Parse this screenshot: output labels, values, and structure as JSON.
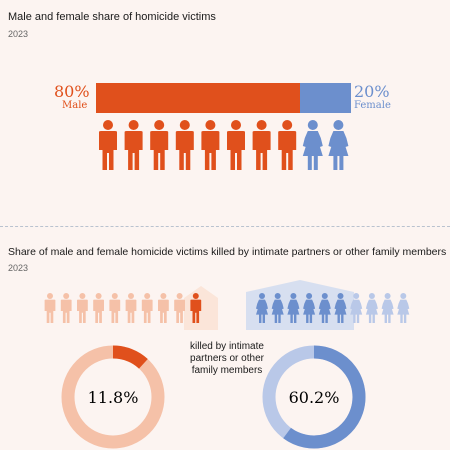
{
  "colors": {
    "male": "#e0501c",
    "female": "#6c8fcd",
    "male_light": "#f5c1a8",
    "female_light": "#b9c8e8",
    "background": "#fcf4f1"
  },
  "sections": {
    "share": {
      "title": "Male and female share of homicide victims",
      "year": "2023"
    },
    "intimate": {
      "title": "Share of male and female homicide victims killed by intimate partners or other family members",
      "year": "2023",
      "caption": [
        "killed by intimate",
        "partners or other",
        "family members"
      ]
    }
  },
  "chart_data": [
    {
      "type": "bar",
      "title": "Male and female share of homicide victims",
      "subtitle": "2023",
      "categories": [
        "Male",
        "Female"
      ],
      "values": [
        80,
        20
      ],
      "value_labels": [
        "80%",
        "20%"
      ],
      "unit": "%",
      "stacked": true,
      "icons_per_10pct": true
    },
    {
      "type": "pie",
      "title": "Share of male and female homicide victims killed by intimate partners or other family members",
      "subtitle": "2023",
      "categories": [
        "Male",
        "Female"
      ],
      "values": [
        11.8,
        60.2
      ],
      "value_labels": [
        "11.8%",
        "60.2%"
      ],
      "unit": "%",
      "style": "donut"
    }
  ]
}
